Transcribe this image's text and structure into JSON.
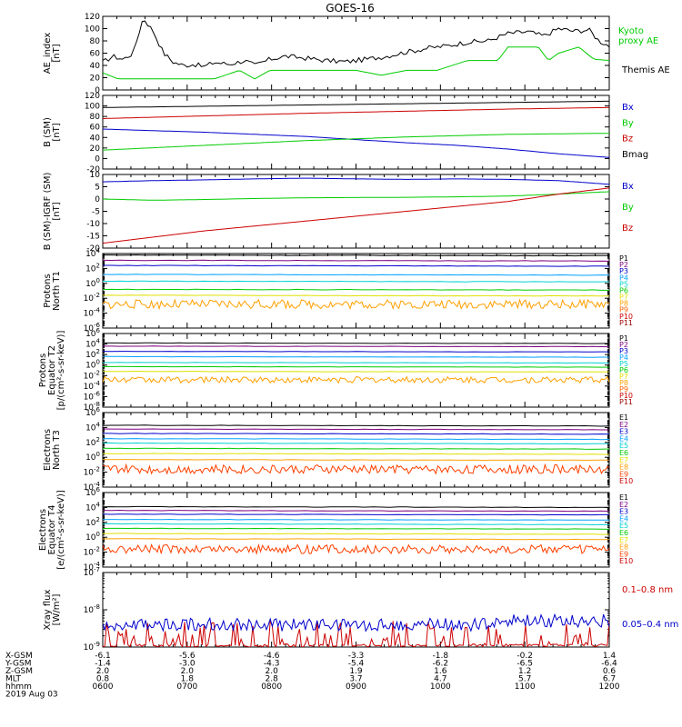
{
  "title": "GOES-16",
  "chart_data": {
    "type": "line",
    "title": "GOES-16",
    "x_range": [
      "0600",
      "1200"
    ],
    "x_tick_labels": [
      "0600",
      "0700",
      "0800",
      "0900",
      "1000",
      "1100",
      "1200"
    ],
    "panels": [
      {
        "id": "ae",
        "ylabel": [
          "AE_index",
          "[nT]"
        ],
        "scale": "linear",
        "ylim": [
          0,
          120
        ],
        "yticks": [
          "0",
          "20",
          "40",
          "60",
          "80",
          "100",
          "120"
        ],
        "series": [
          {
            "name": "Kyoto proxy AE",
            "legend": [
              "Kyoto",
              "proxy AE"
            ],
            "color": "#00cc00",
            "x": [
              0.0,
              0.03,
              0.08,
              0.15,
              0.22,
              0.27,
              0.3,
              0.33,
              0.36,
              0.38,
              0.42,
              0.5,
              0.55,
              0.6,
              0.66,
              0.72,
              0.78,
              0.8,
              0.82,
              0.86,
              0.88,
              0.9,
              0.94,
              0.97,
              1.0
            ],
            "y": [
              28,
              18,
              18,
              18,
              18,
              32,
              18,
              32,
              32,
              32,
              32,
              32,
              24,
              32,
              32,
              48,
              48,
              70,
              70,
              70,
              48,
              60,
              70,
              50,
              48
            ]
          },
          {
            "name": "Themis AE",
            "legend": [
              "Themis AE"
            ],
            "color": "#000000",
            "x": [
              0.0,
              0.02,
              0.04,
              0.06,
              0.08,
              0.1,
              0.12,
              0.14,
              0.16,
              0.18,
              0.2,
              0.22,
              0.25,
              0.28,
              0.3,
              0.33,
              0.36,
              0.4,
              0.44,
              0.48,
              0.52,
              0.56,
              0.6,
              0.64,
              0.68,
              0.72,
              0.76,
              0.8,
              0.84,
              0.87,
              0.9,
              0.93,
              0.96,
              0.98,
              1.0
            ],
            "y": [
              45,
              55,
              50,
              60,
              118,
              95,
              60,
              45,
              40,
              42,
              38,
              45,
              42,
              48,
              40,
              50,
              55,
              52,
              48,
              46,
              50,
              55,
              62,
              68,
              72,
              78,
              80,
              92,
              95,
              88,
              100,
              96,
              98,
              80,
              72
            ]
          }
        ]
      },
      {
        "id": "bsm",
        "ylabel": [
          "B (SM)",
          "[nT]"
        ],
        "scale": "linear",
        "ylim": [
          -20,
          120
        ],
        "yticks": [
          "-20",
          "0",
          "20",
          "40",
          "60",
          "80",
          "100",
          "120"
        ],
        "series": [
          {
            "name": "Bx",
            "legend": [
              "Bx"
            ],
            "color": "#0000cc",
            "x": [
              0.0,
              0.2,
              0.4,
              0.5,
              0.6,
              0.7,
              0.8,
              0.9,
              1.0
            ],
            "y": [
              56,
              50,
              42,
              36,
              30,
              25,
              18,
              9,
              2
            ]
          },
          {
            "name": "By",
            "legend": [
              "By"
            ],
            "color": "#00cc00",
            "x": [
              0.0,
              0.2,
              0.4,
              0.6,
              0.8,
              1.0
            ],
            "y": [
              16,
              25,
              34,
              41,
              46,
              48
            ]
          },
          {
            "name": "Bz",
            "legend": [
              "Bz"
            ],
            "color": "#cc0000",
            "x": [
              0.0,
              0.2,
              0.4,
              0.6,
              0.8,
              1.0
            ],
            "y": [
              76,
              81,
              86,
              90,
              94,
              97
            ]
          },
          {
            "name": "Bmag",
            "legend": [
              "Bmag"
            ],
            "color": "#000000",
            "x": [
              0.0,
              0.5,
              1.0
            ],
            "y": [
              97,
              103,
              109
            ]
          }
        ]
      },
      {
        "id": "bigrf",
        "ylabel": [
          "B (SM)-IGRF (SM)",
          "[nT]"
        ],
        "scale": "linear",
        "ylim": [
          -20,
          10
        ],
        "yticks": [
          "-20",
          "-15",
          "-10",
          "-5",
          "0",
          "5",
          "10"
        ],
        "series": [
          {
            "name": "Bx",
            "legend": [
              "Bx"
            ],
            "color": "#0000cc",
            "x": [
              0.0,
              0.1,
              0.2,
              0.3,
              0.4,
              0.5,
              0.6,
              0.7,
              0.8,
              0.9,
              1.0
            ],
            "y": [
              7,
              7.5,
              7.8,
              8.2,
              8.5,
              8.2,
              8.0,
              8.2,
              8.0,
              7.5,
              6.0
            ]
          },
          {
            "name": "By",
            "legend": [
              "By"
            ],
            "color": "#00cc00",
            "x": [
              0.0,
              0.1,
              0.2,
              0.3,
              0.4,
              0.5,
              0.6,
              0.7,
              0.8,
              0.9,
              1.0
            ],
            "y": [
              0,
              -0.5,
              -0.2,
              0.2,
              0.5,
              0.6,
              0.7,
              0.9,
              1.2,
              2.0,
              3.0
            ]
          },
          {
            "name": "Bz",
            "legend": [
              "Bz"
            ],
            "color": "#cc0000",
            "x": [
              0.0,
              0.1,
              0.2,
              0.3,
              0.4,
              0.5,
              0.6,
              0.7,
              0.8,
              0.9,
              1.0
            ],
            "y": [
              -18,
              -15.5,
              -13,
              -11,
              -9,
              -7,
              -5,
              -3,
              -1,
              2,
              4.5
            ]
          }
        ]
      },
      {
        "id": "pt1",
        "ylabel": [
          "Protons",
          "North T1"
        ],
        "scale": "log",
        "ylim": [
          -6,
          4
        ],
        "yticks": [
          "10^4",
          "10^2",
          "10^0",
          "10^-2",
          "10^-4",
          "10^-6"
        ],
        "series": [
          {
            "name": "P1",
            "legend": [
              "P1"
            ],
            "color": "#000000",
            "level": 3.8
          },
          {
            "name": "P2",
            "legend": [
              "P2"
            ],
            "color": "#7f007f",
            "level": 3.1
          },
          {
            "name": "P3",
            "legend": [
              "P3"
            ],
            "color": "#0000cc",
            "level": 2.4
          },
          {
            "name": "P4",
            "legend": [
              "P4"
            ],
            "color": "#00a0ff",
            "level": 1.2
          },
          {
            "name": "P5",
            "legend": [
              "P5"
            ],
            "color": "#00d0d0",
            "level": 0.3
          },
          {
            "name": "P6",
            "legend": [
              "P6"
            ],
            "color": "#00cc00",
            "level": -0.8
          },
          {
            "name": "P7",
            "legend": [
              "P7"
            ],
            "color": "#e0e000",
            "level": -1.6
          },
          {
            "name": "P8",
            "legend": [
              "P8"
            ],
            "color": "#ffa000",
            "level": -2.8,
            "noisy": true
          },
          {
            "name": "P9",
            "legend": [
              "P9"
            ],
            "color": "#ff6000"
          },
          {
            "name": "P10",
            "legend": [
              "P10"
            ],
            "color": "#cc0000"
          },
          {
            "name": "P11",
            "legend": [
              "P11"
            ],
            "color": "#990000"
          }
        ]
      },
      {
        "id": "pt2",
        "ylabel": [
          "Protons",
          "Equator T2",
          "[p/(cm²-s-sr-keV)]"
        ],
        "scale": "log",
        "ylim": [
          -8,
          6
        ],
        "yticks": [
          "10^6",
          "10^4",
          "10^2",
          "10^0",
          "10^-2",
          "10^-4",
          "10^-6",
          "10^-8"
        ],
        "series": [
          {
            "name": "P1",
            "legend": [
              "P1"
            ],
            "color": "#000000",
            "level": 4.2
          },
          {
            "name": "P2",
            "legend": [
              "P2"
            ],
            "color": "#7f007f",
            "level": 3.6
          },
          {
            "name": "P3",
            "legend": [
              "P3"
            ],
            "color": "#0000cc",
            "level": 2.6
          },
          {
            "name": "P4",
            "legend": [
              "P4"
            ],
            "color": "#00a0ff",
            "level": 1.6
          },
          {
            "name": "P5",
            "legend": [
              "P5"
            ],
            "color": "#00d0d0",
            "level": 0.5
          },
          {
            "name": "P6",
            "legend": [
              "P6"
            ],
            "color": "#00cc00",
            "level": -0.3
          },
          {
            "name": "P7",
            "legend": [
              "P7"
            ],
            "color": "#e0e000",
            "level": -1.2
          },
          {
            "name": "P8",
            "legend": [
              "P8"
            ],
            "color": "#ffa000",
            "level": -2.8,
            "noisy": true
          },
          {
            "name": "P9",
            "legend": [
              "P9"
            ],
            "color": "#ff6000"
          },
          {
            "name": "P10",
            "legend": [
              "P10"
            ],
            "color": "#cc0000"
          },
          {
            "name": "P11",
            "legend": [
              "P11"
            ],
            "color": "#990000"
          }
        ]
      },
      {
        "id": "et3",
        "ylabel": [
          "Electrons",
          "North T3"
        ],
        "scale": "log",
        "ylim": [
          -4,
          6
        ],
        "yticks": [
          "10^6",
          "10^4",
          "10^2",
          "10^0",
          "10^-2",
          "10^-4"
        ],
        "series": [
          {
            "name": "E1",
            "legend": [
              "E1"
            ],
            "color": "#000000",
            "level": 4.3
          },
          {
            "name": "E2",
            "legend": [
              "E2"
            ],
            "color": "#7f007f",
            "level": 3.8
          },
          {
            "name": "E3",
            "legend": [
              "E3"
            ],
            "color": "#0000cc",
            "level": 3.2
          },
          {
            "name": "E4",
            "legend": [
              "E4"
            ],
            "color": "#00a0ff",
            "level": 2.5
          },
          {
            "name": "E5",
            "legend": [
              "E5"
            ],
            "color": "#00d0d0",
            "level": 1.9
          },
          {
            "name": "E6",
            "legend": [
              "E6"
            ],
            "color": "#00cc00",
            "level": 1.2
          },
          {
            "name": "E7",
            "legend": [
              "E7"
            ],
            "color": "#e0e000",
            "level": 0.5
          },
          {
            "name": "E8",
            "legend": [
              "E8"
            ],
            "color": "#ffa000",
            "level": -0.3
          },
          {
            "name": "E9",
            "legend": [
              "E9"
            ],
            "color": "#ff4000",
            "level": -1.6,
            "noisy": true
          },
          {
            "name": "E10",
            "legend": [
              "E10"
            ],
            "color": "#cc0000"
          }
        ]
      },
      {
        "id": "et4",
        "ylabel": [
          "Electrons",
          "Equator T4",
          "[e/(cm²-s-sr-keV)]"
        ],
        "scale": "log",
        "ylim": [
          -4,
          6
        ],
        "yticks": [
          "10^6",
          "10^4",
          "10^2",
          "10^0",
          "10^-2",
          "10^-4"
        ],
        "series": [
          {
            "name": "E1",
            "legend": [
              "E1"
            ],
            "color": "#000000",
            "level": 4.1
          },
          {
            "name": "E2",
            "legend": [
              "E2"
            ],
            "color": "#7f007f",
            "level": 3.6
          },
          {
            "name": "E3",
            "legend": [
              "E3"
            ],
            "color": "#0000cc",
            "level": 3.1
          },
          {
            "name": "E4",
            "legend": [
              "E4"
            ],
            "color": "#00a0ff",
            "level": 2.4
          },
          {
            "name": "E5",
            "legend": [
              "E5"
            ],
            "color": "#00d0d0",
            "level": 1.8
          },
          {
            "name": "E6",
            "legend": [
              "E6"
            ],
            "color": "#00cc00",
            "level": 1.2
          },
          {
            "name": "E7",
            "legend": [
              "E7"
            ],
            "color": "#e0e000",
            "level": 0.5
          },
          {
            "name": "E8",
            "legend": [
              "E8"
            ],
            "color": "#ffa000",
            "level": -0.2
          },
          {
            "name": "E9",
            "legend": [
              "E9"
            ],
            "color": "#ff4000",
            "level": -1.6,
            "noisy": true
          },
          {
            "name": "E10",
            "legend": [
              "E10"
            ],
            "color": "#cc0000"
          }
        ]
      },
      {
        "id": "xray",
        "ylabel": [
          "Xray flux",
          "[W/m²]"
        ],
        "scale": "log",
        "ylim": [
          -9,
          -7
        ],
        "yticks": [
          "10^-7",
          "10^-8",
          "10^-9"
        ],
        "series": [
          {
            "name": "0.1–0.8 nm",
            "legend": [
              "0.1–0.8 nm"
            ],
            "color": "#cc0000",
            "level": -9.0,
            "noisy": true
          },
          {
            "name": "0.05–0.4 nm",
            "legend": [
              "0.05–0.4 nm"
            ],
            "color": "#0000cc",
            "level": -8.4,
            "noisy": true
          }
        ]
      }
    ]
  },
  "orbit_table": {
    "rows": [
      {
        "label": "X-GSM",
        "values": [
          "-6.1",
          "-5.6",
          "-4.6",
          "-3.3",
          "-1.8",
          "-0.2",
          "1.4"
        ]
      },
      {
        "label": "Y-GSM",
        "values": [
          "-1.4",
          "-3.0",
          "-4.3",
          "-5.4",
          "-6.2",
          "-6.5",
          "-6.4"
        ]
      },
      {
        "label": "Z-GSM",
        "values": [
          "2.0",
          "2.0",
          "2.0",
          "1.9",
          "1.6",
          "1.2",
          "0.6"
        ]
      },
      {
        "label": "MLT",
        "values": [
          "0.8",
          "1.8",
          "2.8",
          "3.7",
          "4.7",
          "5.7",
          "6.7"
        ]
      },
      {
        "label": "hhmm",
        "values": [
          "0600",
          "0700",
          "0800",
          "0900",
          "1000",
          "1100",
          "1200"
        ]
      }
    ],
    "date": "2019 Aug 03"
  }
}
